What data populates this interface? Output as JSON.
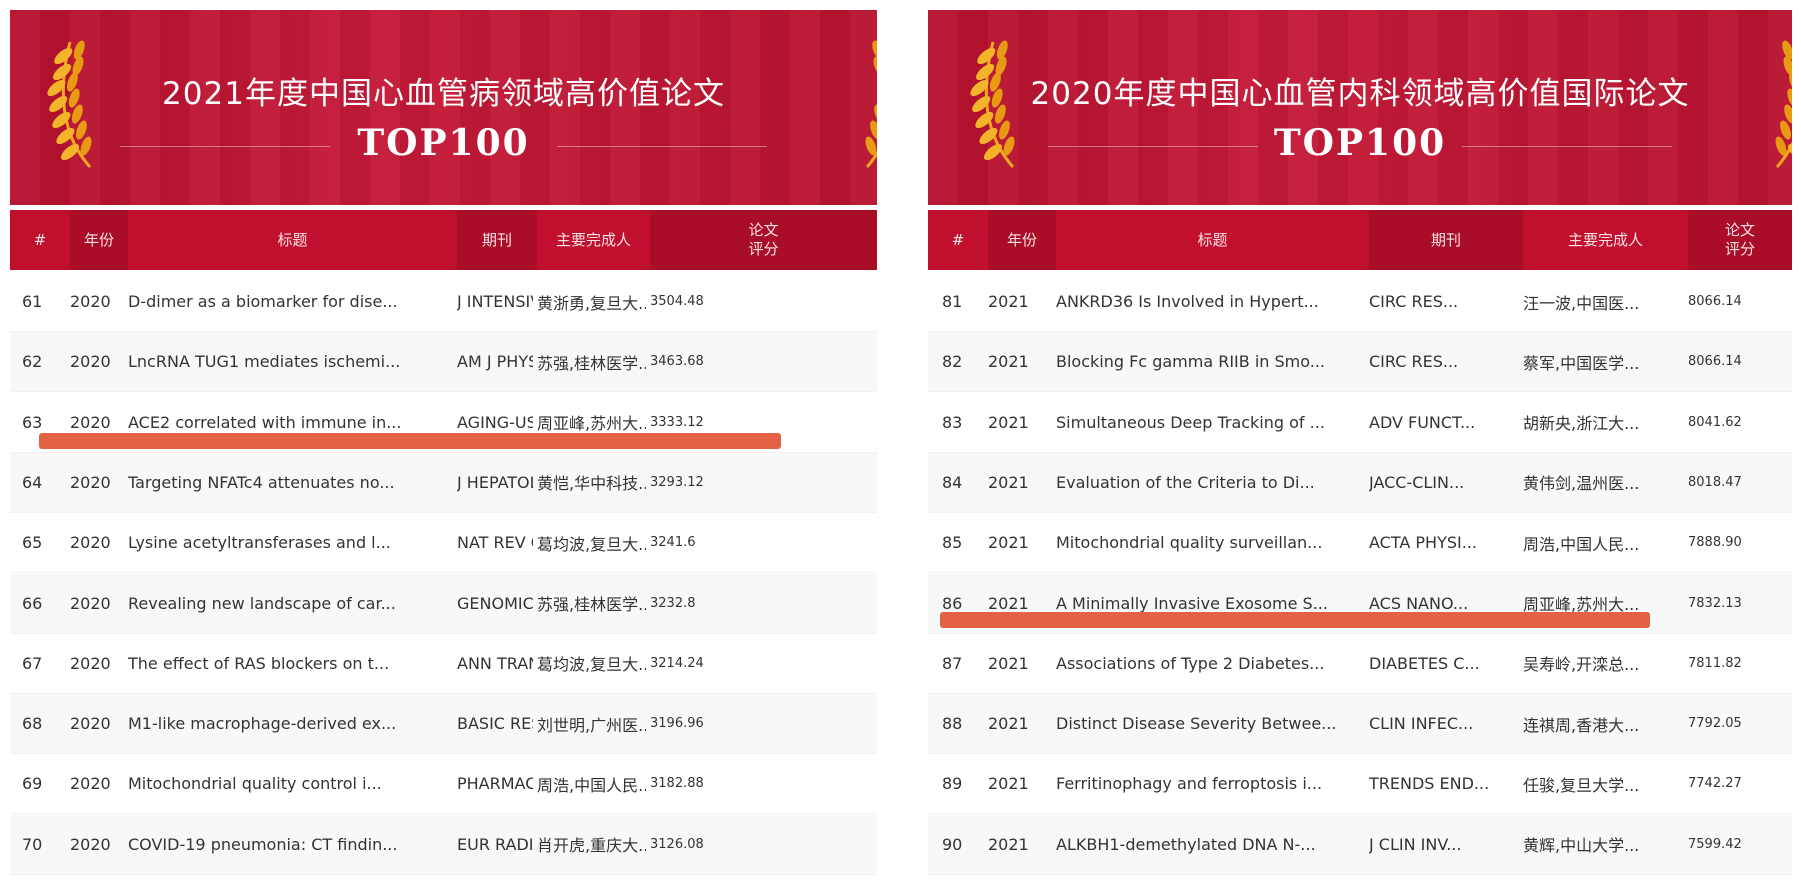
{
  "colors": {
    "banner": "#c41a38",
    "header": "#c0102e",
    "highlight": "#e2583a",
    "laurel": "#f0a81e"
  },
  "left": {
    "title": "2021年度中国心血管病领域高价值论文",
    "subtitle": "TOP100",
    "headers": [
      "#",
      "年份",
      "标题",
      "期刊",
      "主要完成人",
      "论文\n评分"
    ],
    "rows": [
      {
        "n": "61",
        "year": "2020",
        "title": "D-dimer as a biomarker for dise...",
        "journal": "J INTENSIV...",
        "author": "黄浙勇,复旦大...",
        "score": "3504.48"
      },
      {
        "n": "62",
        "year": "2020",
        "title": "LncRNA TUG1 mediates ischemi...",
        "journal": "AM J PHYSI...",
        "author": "苏强,桂林医学...",
        "score": "3463.68"
      },
      {
        "n": "63",
        "year": "2020",
        "title": "ACE2 correlated with immune in...",
        "journal": "AGING-US...",
        "author": "周亚峰,苏州大...",
        "score": "3333.12"
      },
      {
        "n": "64",
        "year": "2020",
        "title": "Targeting NFATc4 attenuates no...",
        "journal": "J HEPATOL...",
        "author": "黄恺,华中科技...",
        "score": "3293.12"
      },
      {
        "n": "65",
        "year": "2020",
        "title": "Lysine acetyltransferases and l...",
        "journal": "NAT REV CA...",
        "author": "葛均波,复旦大...",
        "score": "3241.6"
      },
      {
        "n": "66",
        "year": "2020",
        "title": "Revealing new landscape of car...",
        "journal": "GENOMICS...",
        "author": "苏强,桂林医学...",
        "score": "3232.8"
      },
      {
        "n": "67",
        "year": "2020",
        "title": "The effect of RAS blockers on t...",
        "journal": "ANN TRANSL...",
        "author": "葛均波,复旦大...",
        "score": "3214.24"
      },
      {
        "n": "68",
        "year": "2020",
        "title": "M1-like macrophage-derived ex...",
        "journal": "BASIC RES...",
        "author": "刘世明,广州医...",
        "score": "3196.96"
      },
      {
        "n": "69",
        "year": "2020",
        "title": "Mitochondrial quality control i...",
        "journal": "PHARMACOL...",
        "author": "周浩,中国人民...",
        "score": "3182.88"
      },
      {
        "n": "70",
        "year": "2020",
        "title": "COVID-19 pneumonia: CT findin...",
        "journal": "EUR RADIOL...",
        "author": "肖开虎,重庆大...",
        "score": "3126.08"
      }
    ]
  },
  "right": {
    "title": "2020年度中国心血管内科领域高价值国际论文",
    "subtitle": "TOP100",
    "headers": [
      "#",
      "年份",
      "标题",
      "期刊",
      "主要完成人",
      "论文\n评分"
    ],
    "rows": [
      {
        "n": "81",
        "year": "2021",
        "title": "ANKRD36 Is Involved in Hypert...",
        "journal": "CIRC RES...",
        "author": "汪一波,中国医...",
        "score": "8066.14"
      },
      {
        "n": "82",
        "year": "2021",
        "title": "Blocking Fc gamma RIIB in Smo...",
        "journal": "CIRC RES...",
        "author": "蔡军,中国医学...",
        "score": "8066.14"
      },
      {
        "n": "83",
        "year": "2021",
        "title": "Simultaneous Deep Tracking of ...",
        "journal": "ADV FUNCT...",
        "author": "胡新央,浙江大...",
        "score": "8041.62"
      },
      {
        "n": "84",
        "year": "2021",
        "title": "Evaluation of the Criteria to Di...",
        "journal": "JACC-CLIN...",
        "author": "黄伟剑,温州医...",
        "score": "8018.47"
      },
      {
        "n": "85",
        "year": "2021",
        "title": "Mitochondrial quality surveillan...",
        "journal": "ACTA PHYSI...",
        "author": "周浩,中国人民...",
        "score": "7888.90"
      },
      {
        "n": "86",
        "year": "2021",
        "title": "A Minimally Invasive Exosome S...",
        "journal": "ACS NANO...",
        "author": "周亚峰,苏州大...",
        "score": "7832.13"
      },
      {
        "n": "87",
        "year": "2021",
        "title": "Associations of Type 2 Diabetes...",
        "journal": "DIABETES C...",
        "author": "吴寿岭,开滦总...",
        "score": "7811.82"
      },
      {
        "n": "88",
        "year": "2021",
        "title": "Distinct Disease Severity Betwee...",
        "journal": "CLIN INFEC...",
        "author": "连祺周,香港大...",
        "score": "7792.05"
      },
      {
        "n": "89",
        "year": "2021",
        "title": "Ferritinophagy and ferroptosis i...",
        "journal": "TRENDS END...",
        "author": "任骏,复旦大学...",
        "score": "7742.27"
      },
      {
        "n": "90",
        "year": "2021",
        "title": "ALKBH1-demethylated DNA N-...",
        "journal": "J CLIN INV...",
        "author": "黄辉,中山大学...",
        "score": "7599.42"
      }
    ]
  }
}
